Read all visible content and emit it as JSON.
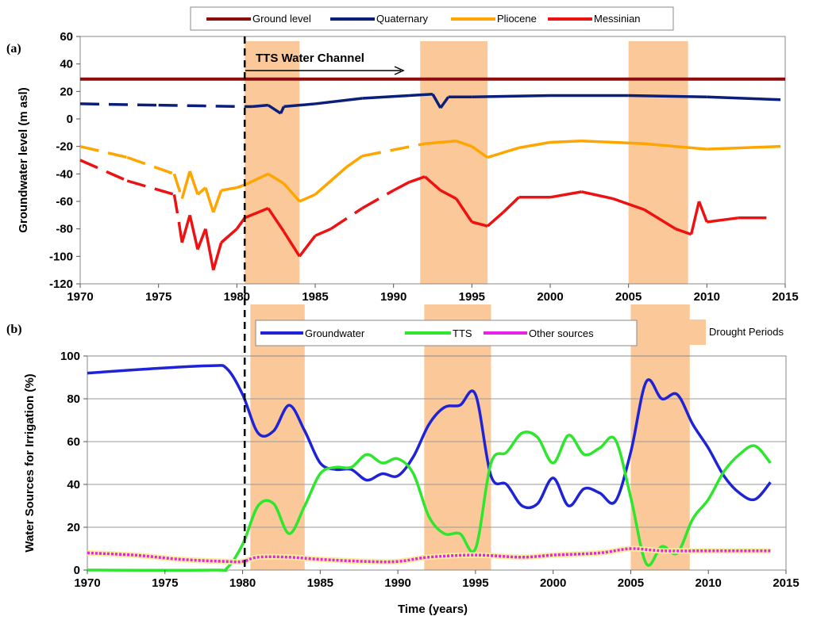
{
  "chart_data": [
    {
      "panel": "(a)",
      "type": "line",
      "ylabel": "Groundwater level (m asl)",
      "xlim": [
        1970,
        2015
      ],
      "ylim": [
        -120,
        60
      ],
      "xticks": [
        1970,
        1975,
        1980,
        1985,
        1990,
        1995,
        2000,
        2005,
        2010,
        2015
      ],
      "yticks": [
        -120,
        -100,
        -80,
        -60,
        -40,
        -20,
        0,
        20,
        40,
        60
      ],
      "legend": {
        "position": "top",
        "entries": [
          "Ground level",
          "Quaternary",
          "Pliocene",
          "Messinian"
        ]
      },
      "annotation": "TTS Water Channel",
      "series": [
        {
          "name": "Ground level",
          "color": "#8b0d0d",
          "points": [
            [
              1970,
              29
            ],
            [
              2015,
              29
            ]
          ]
        },
        {
          "name": "Quaternary",
          "color": "#0a1f7a",
          "points": [
            [
              1970,
              11
            ],
            [
              1975,
              10
            ],
            [
              1980.5,
              9
            ],
            [
              1981,
              9
            ],
            [
              1982,
              10
            ],
            [
              1982.8,
              4
            ],
            [
              1983,
              9
            ],
            [
              1985,
              11
            ],
            [
              1988,
              15
            ],
            [
              1991,
              17
            ],
            [
              1992.5,
              18
            ],
            [
              1993,
              8
            ],
            [
              1993.5,
              16
            ],
            [
              1995,
              16
            ],
            [
              2000,
              17
            ],
            [
              2005,
              17
            ],
            [
              2010,
              16
            ],
            [
              2014.7,
              14
            ]
          ]
        },
        {
          "name": "Pliocene",
          "color": "#ffa500",
          "points": [
            [
              1970,
              -20
            ],
            [
              1973,
              -28
            ],
            [
              1976,
              -40
            ],
            [
              1976.5,
              -58
            ],
            [
              1977,
              -38
            ],
            [
              1977.5,
              -55
            ],
            [
              1978,
              -50
            ],
            [
              1978.5,
              -68
            ],
            [
              1979,
              -52
            ],
            [
              1980,
              -50
            ],
            [
              1980.5,
              -48
            ],
            [
              1982,
              -40
            ],
            [
              1983,
              -47
            ],
            [
              1984,
              -60
            ],
            [
              1985,
              -55
            ],
            [
              1986,
              -45
            ],
            [
              1987,
              -35
            ],
            [
              1988,
              -27
            ],
            [
              1992,
              -18
            ],
            [
              1994,
              -16
            ],
            [
              1995,
              -20
            ],
            [
              1996,
              -28
            ],
            [
              1998,
              -21
            ],
            [
              2000,
              -17
            ],
            [
              2002,
              -16
            ],
            [
              2006,
              -18
            ],
            [
              2010,
              -22
            ],
            [
              2014.7,
              -20
            ]
          ]
        },
        {
          "name": "Messinian",
          "color": "#ee1111",
          "points": [
            [
              1970,
              -30
            ],
            [
              1973,
              -45
            ],
            [
              1976,
              -55
            ],
            [
              1976.3,
              -75
            ],
            [
              1976.5,
              -90
            ],
            [
              1977,
              -70
            ],
            [
              1977.5,
              -95
            ],
            [
              1978,
              -80
            ],
            [
              1978.5,
              -110
            ],
            [
              1979,
              -90
            ],
            [
              1980,
              -80
            ],
            [
              1980.5,
              -72
            ],
            [
              1982,
              -65
            ],
            [
              1983,
              -82
            ],
            [
              1984,
              -100
            ],
            [
              1985,
              -85
            ],
            [
              1986,
              -80
            ],
            [
              1988,
              -65
            ],
            [
              1990,
              -52
            ],
            [
              1991,
              -46
            ],
            [
              1992,
              -42
            ],
            [
              1993,
              -52
            ],
            [
              1994,
              -58
            ],
            [
              1995,
              -75
            ],
            [
              1996,
              -78
            ],
            [
              1997,
              -68
            ],
            [
              1998,
              -57
            ],
            [
              2000,
              -57
            ],
            [
              2002,
              -53
            ],
            [
              2004,
              -58
            ],
            [
              2006,
              -66
            ],
            [
              2008,
              -80
            ],
            [
              2009,
              -84
            ],
            [
              2009.5,
              -60
            ],
            [
              2010,
              -75
            ],
            [
              2012,
              -72
            ],
            [
              2013.8,
              -72
            ]
          ]
        }
      ]
    },
    {
      "panel": "(b)",
      "type": "line",
      "xlabel": "Time (years)",
      "ylabel": "Water Sources for Irrigation (%)",
      "xlim": [
        1970,
        2015
      ],
      "ylim": [
        0,
        100
      ],
      "xticks": [
        1970,
        1975,
        1980,
        1985,
        1990,
        1995,
        2000,
        2005,
        2010,
        2015
      ],
      "yticks": [
        0,
        20,
        40,
        60,
        80,
        100
      ],
      "grid": true,
      "legend": {
        "position": "top",
        "entries": [
          "Groundwater",
          "TTS",
          "Other sources"
        ]
      },
      "series": [
        {
          "name": "Groundwater",
          "color": "#1f23d6",
          "points": [
            [
              1970,
              92
            ],
            [
              1974,
              94
            ],
            [
              1978,
              95.5
            ],
            [
              1979,
              94
            ],
            [
              1980,
              82
            ],
            [
              1981,
              64
            ],
            [
              1982,
              65
            ],
            [
              1983,
              77
            ],
            [
              1984,
              65
            ],
            [
              1985,
              50
            ],
            [
              1986,
              47
            ],
            [
              1987,
              47
            ],
            [
              1988,
              42
            ],
            [
              1989,
              45
            ],
            [
              1990,
              44
            ],
            [
              1991,
              53
            ],
            [
              1992,
              68
            ],
            [
              1993,
              76
            ],
            [
              1994,
              77
            ],
            [
              1995,
              82
            ],
            [
              1996,
              44
            ],
            [
              1997,
              40
            ],
            [
              1998,
              30
            ],
            [
              1999,
              31
            ],
            [
              2000,
              43
            ],
            [
              2001,
              30
            ],
            [
              2002,
              38
            ],
            [
              2003,
              36
            ],
            [
              2004,
              32
            ],
            [
              2005,
              55
            ],
            [
              2006,
              88
            ],
            [
              2007,
              80
            ],
            [
              2008,
              82
            ],
            [
              2009,
              68
            ],
            [
              2010,
              57
            ],
            [
              2011,
              44
            ],
            [
              2012,
              36
            ],
            [
              2013,
              33
            ],
            [
              2014,
              41
            ]
          ]
        },
        {
          "name": "TTS",
          "color": "#2de62d",
          "points": [
            [
              1970,
              0
            ],
            [
              1978,
              0
            ],
            [
              1979,
              1
            ],
            [
              1980,
              12
            ],
            [
              1981,
              30
            ],
            [
              1982,
              31
            ],
            [
              1983,
              17
            ],
            [
              1984,
              30
            ],
            [
              1985,
              45
            ],
            [
              1986,
              48
            ],
            [
              1987,
              48
            ],
            [
              1988,
              54
            ],
            [
              1989,
              50
            ],
            [
              1990,
              52
            ],
            [
              1991,
              45
            ],
            [
              1992,
              25
            ],
            [
              1993,
              17
            ],
            [
              1994,
              17
            ],
            [
              1995,
              10
            ],
            [
              1996,
              50
            ],
            [
              1997,
              55
            ],
            [
              1998,
              64
            ],
            [
              1999,
              62
            ],
            [
              2000,
              50
            ],
            [
              2001,
              63
            ],
            [
              2002,
              54
            ],
            [
              2003,
              57
            ],
            [
              2004,
              61
            ],
            [
              2005,
              34
            ],
            [
              2006,
              3
            ],
            [
              2007,
              11
            ],
            [
              2008,
              8
            ],
            [
              2009,
              24
            ],
            [
              2010,
              33
            ],
            [
              2011,
              46
            ],
            [
              2012,
              54
            ],
            [
              2013,
              58
            ],
            [
              2014,
              50
            ]
          ]
        },
        {
          "name": "Other sources",
          "color": "#e622e6",
          "points": [
            [
              1970,
              8
            ],
            [
              1973,
              7
            ],
            [
              1976,
              5
            ],
            [
              1979,
              4
            ],
            [
              1980,
              4
            ],
            [
              1981,
              6
            ],
            [
              1983,
              6
            ],
            [
              1985,
              5
            ],
            [
              1988,
              4
            ],
            [
              1990,
              4
            ],
            [
              1992,
              6
            ],
            [
              1995,
              7
            ],
            [
              1998,
              6
            ],
            [
              2000,
              7
            ],
            [
              2003,
              8
            ],
            [
              2005,
              10
            ],
            [
              2007,
              9
            ],
            [
              2010,
              9
            ],
            [
              2014,
              9
            ]
          ]
        }
      ]
    }
  ],
  "drought_label": "Drought Periods",
  "drought_periods": [
    [
      1980.5,
      1984
    ],
    [
      1991.7,
      1996
    ],
    [
      2005,
      2008.8
    ]
  ],
  "tts_start_year": 1980.5
}
